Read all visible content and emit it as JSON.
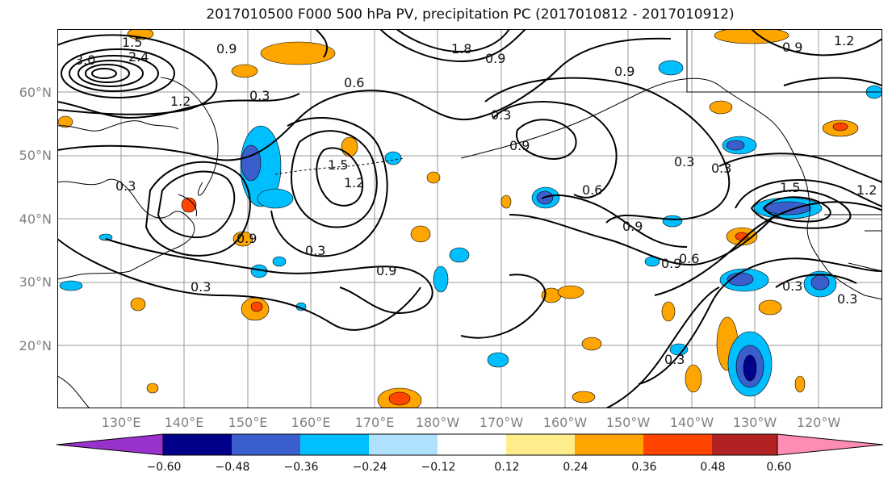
{
  "title": "2017010500 F000 500 hPa PV, precipitation PC (2017010812 - 2017010912)",
  "lat_labels": [
    "60°N",
    "50°N",
    "40°N",
    "30°N",
    "20°N"
  ],
  "lon_labels": [
    "130°E",
    "140°E",
    "150°E",
    "160°E",
    "170°E",
    "180°W",
    "170°W",
    "160°W",
    "150°W",
    "140°W",
    "130°W",
    "120°W"
  ],
  "contour_labels": [
    "3.0",
    "1.5",
    "2.4",
    "0.9",
    "1.2",
    "1.8",
    "0.9",
    "0.6",
    "0.9",
    "0.3",
    "0.9",
    "1.2",
    "0.9",
    "0.3",
    "1.5",
    "1.2",
    "0.3",
    "0.9",
    "0.3",
    "0.9",
    "0.3",
    "0.6",
    "0.3",
    "1.5",
    "1.2",
    "0.9",
    "0.9",
    "0.6",
    "0.3",
    "0.3",
    "0.3",
    "0.3"
  ],
  "colorbar": {
    "ticks": [
      "−0.60",
      "−0.48",
      "−0.36",
      "−0.24",
      "−0.12",
      "0.12",
      "0.24",
      "0.36",
      "0.48",
      "0.60"
    ],
    "colors": [
      "#9932cc",
      "#00008b",
      "#3a5fcd",
      "#00bfff",
      "#b0e2ff",
      "#ffffff",
      "#ffec8b",
      "#ffa500",
      "#ff4500",
      "#b22222",
      "#ff8cb4"
    ]
  },
  "anomaly_colors": {
    "neg_strong": "#00008b",
    "neg_mid": "#3a5fcd",
    "neg_light": "#00bfff",
    "neg_faint": "#b0e2ff",
    "pos_faint": "#ffec8b",
    "pos_light": "#ffa500",
    "pos_mid": "#ff4500"
  }
}
